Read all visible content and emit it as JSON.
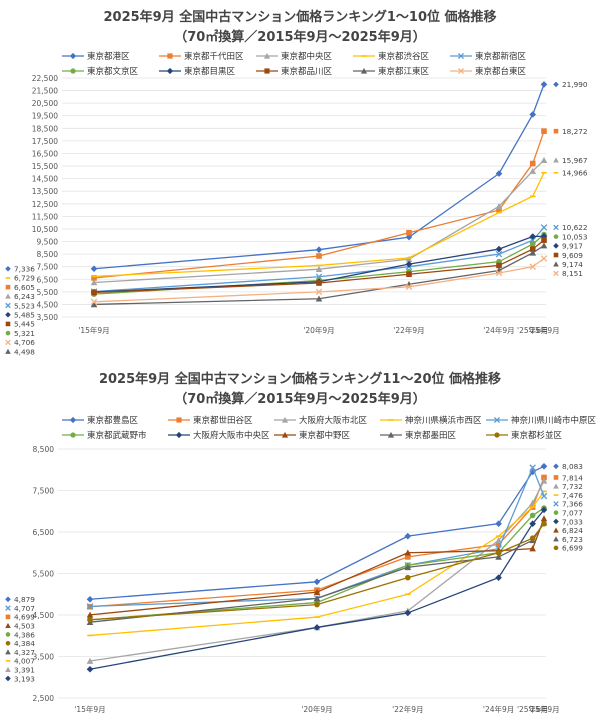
{
  "chart_data": [
    {
      "type": "line",
      "title": "2025年9月 全国中古マンション価格ランキング1～10位 価格推移",
      "subtitle": "（70㎡換算／2015年9月～2025年9月）",
      "categories": [
        "'15年9月",
        "'20年9月",
        "'22年9月",
        "'24年9月",
        "'25年6月",
        "'25年9月"
      ],
      "x": [
        2015.75,
        2020.75,
        2022.75,
        2024.75,
        2025.5,
        2025.75
      ],
      "ylim": [
        3500,
        22500
      ],
      "yticks": [
        3500,
        4500,
        5500,
        6500,
        7500,
        8500,
        9500,
        10500,
        11500,
        12500,
        13500,
        14500,
        15500,
        16500,
        17500,
        18500,
        19500,
        20500,
        21500,
        22500
      ],
      "ytick_labels": [
        "3,500",
        "4,500",
        "5,500",
        "6,500",
        "7,500",
        "8,500",
        "9,500",
        "10,500",
        "11,500",
        "12,500",
        "13,500",
        "14,500",
        "15,500",
        "16,500",
        "17,500",
        "18,500",
        "19,500",
        "20,500",
        "21,500",
        "22,500"
      ],
      "series": [
        {
          "name": "東京都港区",
          "color": "#4472C4",
          "marker": "diamond",
          "values": [
            7336,
            8850,
            9850,
            14900,
            19600,
            21990
          ],
          "start_label": "7,336",
          "end_label": "21,990"
        },
        {
          "name": "東京都千代田区",
          "color": "#ED7D31",
          "marker": "square",
          "values": [
            6605,
            8350,
            10200,
            12000,
            15700,
            18272
          ],
          "start_label": "6,605",
          "end_label": "18,272"
        },
        {
          "name": "東京都中央区",
          "color": "#A5A5A5",
          "marker": "triangle",
          "values": [
            6243,
            7300,
            8100,
            12300,
            15100,
            15967
          ],
          "start_label": "6,243",
          "end_label": "15,967"
        },
        {
          "name": "東京都渋谷区",
          "color": "#FFC000",
          "marker": "line",
          "values": [
            6729,
            7600,
            8200,
            11800,
            13100,
            14966
          ],
          "start_label": "6,729",
          "end_label": "14,966"
        },
        {
          "name": "東京都新宿区",
          "color": "#5B9BD5",
          "marker": "x",
          "values": [
            5523,
            6700,
            7500,
            8500,
            9600,
            10622
          ],
          "start_label": "5,523",
          "end_label": "10,622"
        },
        {
          "name": "東京都文京区",
          "color": "#70AD47",
          "marker": "circle",
          "values": [
            5321,
            6400,
            7100,
            7900,
            9300,
            10053
          ],
          "start_label": "5,321",
          "end_label": "10,053"
        },
        {
          "name": "東京都目黒区",
          "color": "#264478",
          "marker": "diamond",
          "values": [
            5485,
            6300,
            7700,
            8900,
            9900,
            9917
          ],
          "start_label": "5,485",
          "end_label": "9,917"
        },
        {
          "name": "東京都品川区",
          "color": "#9E480E",
          "marker": "square",
          "values": [
            5445,
            6200,
            6900,
            7600,
            8900,
            9609
          ],
          "start_label": "5,445",
          "end_label": "9,609"
        },
        {
          "name": "東京都江東区",
          "color": "#636363",
          "marker": "triangle",
          "values": [
            4498,
            4950,
            6100,
            7200,
            8600,
            9174
          ],
          "start_label": "4,498",
          "end_label": "9,174"
        },
        {
          "name": "東京都台東区",
          "color": "#F4B183",
          "marker": "x",
          "values": [
            4706,
            5500,
            5900,
            7000,
            7500,
            8151
          ],
          "start_label": "4,706",
          "end_label": "8,151"
        }
      ]
    },
    {
      "type": "line",
      "title": "2025年9月 全国中古マンション価格ランキング11～20位 価格推移",
      "subtitle": "（70㎡換算／2015年9月～2025年9月）",
      "categories": [
        "'15年9月",
        "'20年9月",
        "'22年9月",
        "'24年9月",
        "'25年6月",
        "'25年9月"
      ],
      "x": [
        2015.75,
        2020.75,
        2022.75,
        2024.75,
        2025.5,
        2025.75
      ],
      "ylim": [
        2500,
        8500
      ],
      "yticks": [
        2500,
        3500,
        4500,
        5500,
        6500,
        7500,
        8500
      ],
      "ytick_labels": [
        "2,500",
        "3,500",
        "4,500",
        "5,500",
        "6,500",
        "7,500",
        "8,500"
      ],
      "series": [
        {
          "name": "東京都豊島区",
          "color": "#4472C4",
          "marker": "diamond",
          "values": [
            4879,
            5300,
            6400,
            6700,
            7950,
            8083
          ],
          "start_label": "4,879",
          "end_label": "8,083"
        },
        {
          "name": "東京都世田谷区",
          "color": "#ED7D31",
          "marker": "square",
          "values": [
            4699,
            5100,
            5900,
            6200,
            7100,
            7814
          ],
          "start_label": "4,699",
          "end_label": "7,814"
        },
        {
          "name": "大阪府大阪市北区",
          "color": "#A5A5A5",
          "marker": "triangle",
          "values": [
            3391,
            4200,
            4600,
            6300,
            7200,
            7732
          ],
          "start_label": "3,391",
          "end_label": "7,732"
        },
        {
          "name": "神奈川県横浜市西区",
          "color": "#FFC000",
          "marker": "line",
          "values": [
            4007,
            4450,
            5000,
            6400,
            7100,
            7476
          ],
          "start_label": "4,007",
          "end_label": "7,476"
        },
        {
          "name": "神奈川県川崎市中原区",
          "color": "#5B9BD5",
          "marker": "x",
          "values": [
            4707,
            4900,
            5700,
            6100,
            8050,
            7366
          ],
          "start_label": "4,707",
          "end_label": "7,366"
        },
        {
          "name": "東京都武蔵野市",
          "color": "#70AD47",
          "marker": "circle",
          "values": [
            4386,
            4800,
            5700,
            6000,
            6900,
            7077
          ],
          "start_label": "4,386",
          "end_label": "7,077"
        },
        {
          "name": "大阪府大阪市中央区",
          "color": "#264478",
          "marker": "diamond",
          "values": [
            3193,
            4200,
            4550,
            5400,
            6700,
            7033
          ],
          "start_label": "3,193",
          "end_label": "7,033"
        },
        {
          "name": "東京都中野区",
          "color": "#9E480E",
          "marker": "triangle",
          "values": [
            4503,
            5050,
            6000,
            6050,
            6100,
            6824
          ],
          "start_label": "4,503",
          "end_label": "6,824"
        },
        {
          "name": "東京都墨田区",
          "color": "#636363",
          "marker": "triangle",
          "values": [
            4327,
            4900,
            5650,
            5900,
            6300,
            6723
          ],
          "start_label": "4,327",
          "end_label": "6,723"
        },
        {
          "name": "東京都杉並区",
          "color": "#997300",
          "marker": "circle",
          "values": [
            4384,
            4750,
            5400,
            6000,
            6350,
            6699
          ],
          "start_label": "4,384",
          "end_label": "6,699"
        }
      ]
    }
  ]
}
